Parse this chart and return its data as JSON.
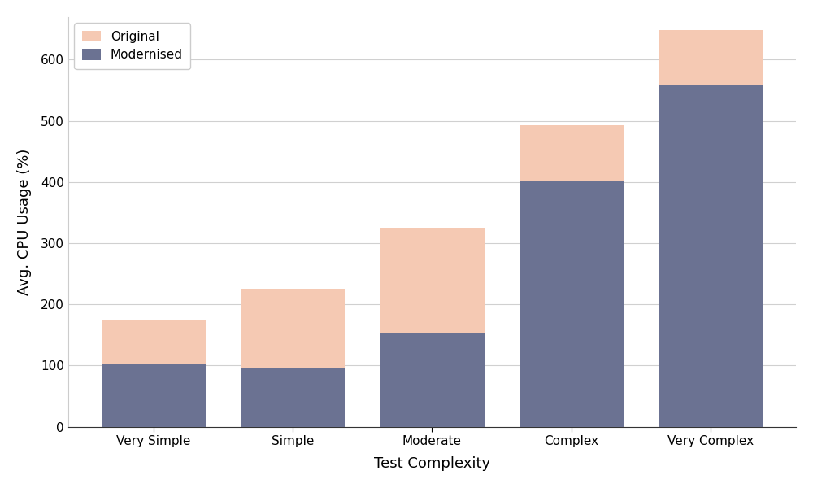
{
  "categories": [
    "Very Simple",
    "Simple",
    "Moderate",
    "Complex",
    "Very Complex"
  ],
  "original_values": [
    175,
    225,
    325,
    493,
    648
  ],
  "modernised_values": [
    103,
    95,
    152,
    403,
    558
  ],
  "original_color": "#f5c9b3",
  "modernised_color": "#6b7292",
  "title": "",
  "xlabel": "Test Complexity",
  "ylabel": "Avg. CPU Usage (%)",
  "ylim": [
    0,
    670
  ],
  "yticks": [
    0,
    100,
    200,
    300,
    400,
    500,
    600
  ],
  "bar_width": 0.75,
  "legend_labels": [
    "Original",
    "Modernised"
  ],
  "background_color": "#ffffff",
  "grid_color": "#d0d0d0",
  "xlabel_fontsize": 13,
  "ylabel_fontsize": 13,
  "tick_fontsize": 11,
  "legend_fontsize": 11
}
